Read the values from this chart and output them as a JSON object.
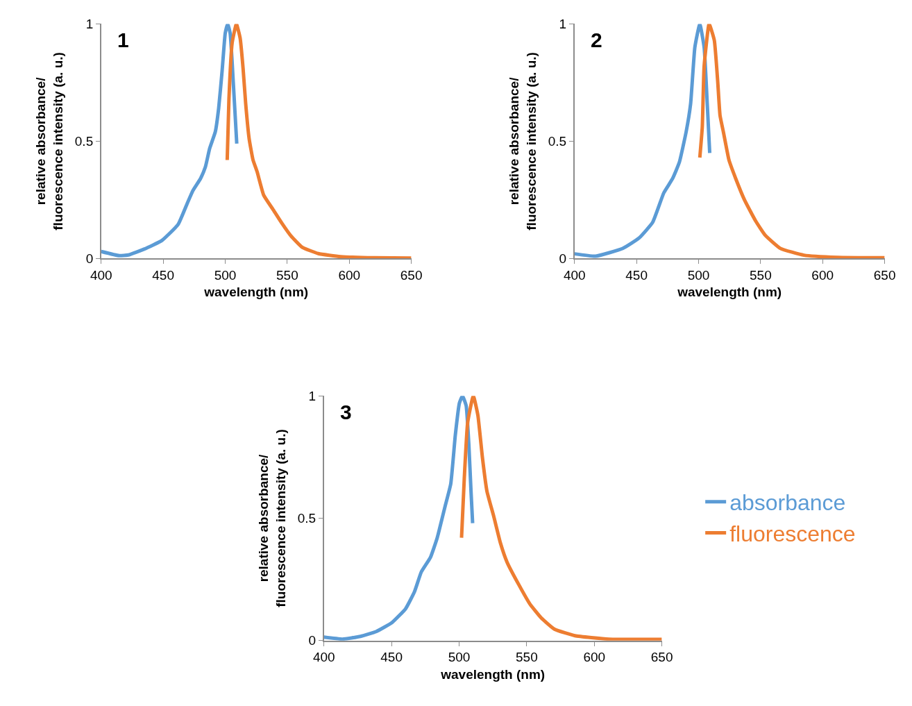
{
  "chart_data": [
    {
      "type": "line",
      "title": "1",
      "xlabel": "wavelength (nm)",
      "ylabel": "relative absorbance/\nfluorescence intensity (a. u.)",
      "xlim": [
        400,
        650
      ],
      "xticks": [
        400,
        450,
        500,
        550,
        600,
        650
      ],
      "ylim": [
        0,
        1
      ],
      "yticks": [
        0,
        0.5,
        1
      ],
      "marker": "none",
      "line_style": "solid",
      "legend": "right",
      "series": [
        {
          "name": "absorbance",
          "color": "#5b9bd5",
          "x": [
            400,
            414.6,
            421.9,
            434.6,
            449,
            462,
            469,
            474,
            480,
            484,
            487.5,
            492,
            494.7,
            497.5,
            500,
            502,
            504,
            506.5,
            509.3
          ],
          "values": [
            0.03,
            0.012,
            0.015,
            0.04,
            0.077,
            0.145,
            0.23,
            0.29,
            0.34,
            0.39,
            0.47,
            0.54,
            0.64,
            0.8,
            0.96,
            1.0,
            0.96,
            0.75,
            0.49
          ]
        },
        {
          "name": "fluorescence",
          "color": "#ed7d31",
          "x": [
            501.6,
            503,
            505.6,
            509,
            512,
            514.4,
            516.5,
            519.3,
            522.4,
            525.7,
            531,
            538.4,
            545.7,
            553,
            562,
            575,
            593,
            620,
            650
          ],
          "values": [
            0.42,
            0.68,
            0.92,
            1.0,
            0.94,
            0.81,
            0.66,
            0.51,
            0.42,
            0.37,
            0.27,
            0.21,
            0.15,
            0.096,
            0.048,
            0.021,
            0.008,
            0.003,
            0.002
          ]
        }
      ]
    },
    {
      "type": "line",
      "title": "2",
      "xlabel": "wavelength (nm)",
      "ylabel": "relative absorbance/\nfluorescence intensity (a. u.)",
      "xlim": [
        400,
        650
      ],
      "xticks": [
        400,
        450,
        500,
        550,
        600,
        650
      ],
      "ylim": [
        0,
        1
      ],
      "yticks": [
        0,
        0.5,
        1
      ],
      "marker": "none",
      "line_style": "solid",
      "series": [
        {
          "color": "#5b9bd5",
          "x": [
            400,
            417,
            439,
            452,
            463,
            472,
            479,
            484.5,
            490,
            493.6,
            497,
            501,
            504.5,
            507,
            509
          ],
          "values": [
            0.02,
            0.01,
            0.043,
            0.087,
            0.154,
            0.28,
            0.34,
            0.41,
            0.54,
            0.66,
            0.9,
            1.0,
            0.9,
            0.66,
            0.45
          ]
        },
        {
          "color": "#ed7d31",
          "x": [
            501,
            503,
            504.5,
            508.5,
            512.7,
            515.5,
            517.3,
            520,
            524.5,
            530,
            537,
            546,
            553.6,
            566,
            585,
            612,
            650
          ],
          "values": [
            0.43,
            0.56,
            0.82,
            1.0,
            0.93,
            0.75,
            0.61,
            0.54,
            0.42,
            0.34,
            0.25,
            0.16,
            0.1,
            0.043,
            0.014,
            0.005,
            0.003
          ]
        }
      ]
    },
    {
      "type": "line",
      "title": "3",
      "xlabel": "wavelength (nm)",
      "ylabel": "relative absorbance/\nfluorescence intensity (a. u.)",
      "xlim": [
        400,
        650
      ],
      "xticks": [
        400,
        450,
        500,
        550,
        600,
        650
      ],
      "ylim": [
        0,
        1
      ],
      "yticks": [
        0,
        0.5,
        1
      ],
      "marker": "none",
      "line_style": "solid",
      "series": [
        {
          "color": "#5b9bd5",
          "x": [
            400,
            413.7,
            427,
            438.7,
            450.4,
            460.4,
            467,
            472,
            478.8,
            483.8,
            489.7,
            493.8,
            497.2,
            500.2,
            502.5,
            505.2,
            507.2,
            508.8,
            510
          ],
          "values": [
            0.014,
            0.006,
            0.017,
            0.037,
            0.074,
            0.13,
            0.2,
            0.28,
            0.34,
            0.42,
            0.55,
            0.64,
            0.84,
            0.97,
            1.0,
            0.96,
            0.8,
            0.61,
            0.48
          ]
        },
        {
          "color": "#ed7d31",
          "x": [
            501.8,
            503.8,
            506.3,
            510.5,
            513.9,
            517.2,
            520.6,
            525.5,
            530.5,
            535.5,
            544,
            552.3,
            560.7,
            570.7,
            585.7,
            610.7,
            650
          ],
          "values": [
            0.42,
            0.66,
            0.89,
            1.0,
            0.92,
            0.75,
            0.61,
            0.51,
            0.4,
            0.32,
            0.23,
            0.15,
            0.093,
            0.046,
            0.02,
            0.006,
            0.005
          ]
        }
      ]
    }
  ]
}
